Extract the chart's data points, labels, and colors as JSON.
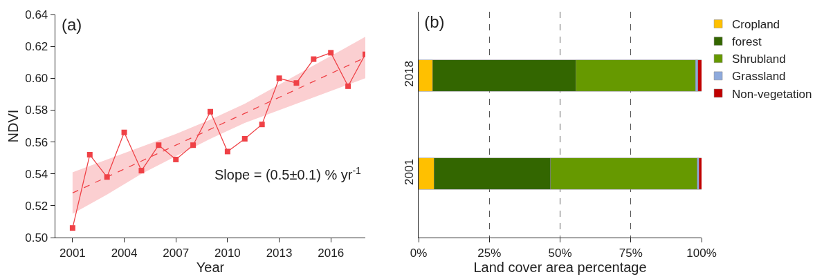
{
  "chart_data": [
    {
      "type": "line",
      "title": "(a)",
      "xlabel": "Year",
      "ylabel": "NDVI",
      "x": [
        2001,
        2002,
        2003,
        2004,
        2005,
        2006,
        2007,
        2008,
        2009,
        2010,
        2011,
        2012,
        2013,
        2014,
        2015,
        2016,
        2017,
        2018
      ],
      "series": [
        {
          "color": "#ef4146",
          "marker": "square",
          "line_style": "solid",
          "values": [
            0.506,
            0.552,
            0.538,
            0.566,
            0.542,
            0.558,
            0.549,
            0.558,
            0.579,
            0.554,
            0.562,
            0.571,
            0.6,
            0.597,
            0.612,
            0.616,
            0.595,
            0.615
          ]
        },
        {
          "color": "#ef4146",
          "marker": "none",
          "line_style": "dashed",
          "x": [
            2001,
            2003,
            2005,
            2007,
            2009,
            2011,
            2013,
            2015,
            2017,
            2018
          ],
          "values": [
            0.528,
            0.538,
            0.548,
            0.558,
            0.568,
            0.578,
            0.588,
            0.598,
            0.608,
            0.613
          ],
          "lower": [
            0.515,
            0.527,
            0.54,
            0.551,
            0.562,
            0.572,
            0.58,
            0.588,
            0.596,
            0.6
          ],
          "upper": [
            0.541,
            0.549,
            0.557,
            0.565,
            0.574,
            0.584,
            0.596,
            0.608,
            0.62,
            0.626
          ]
        }
      ],
      "xlim": [
        2000,
        2018
      ],
      "xticks": [
        2001,
        2004,
        2007,
        2010,
        2013,
        2016
      ],
      "ylim": [
        0.5,
        0.64
      ],
      "yticks": [
        {
          "value": 0.5,
          "label": "0.50"
        },
        {
          "value": 0.52,
          "label": "0.52"
        },
        {
          "value": 0.54,
          "label": "0.54"
        },
        {
          "value": 0.56,
          "label": "0.56"
        },
        {
          "value": 0.58,
          "label": "0.58"
        },
        {
          "value": 0.6,
          "label": "0.60"
        },
        {
          "value": 0.62,
          "label": "0.62"
        },
        {
          "value": 0.64,
          "label": "0.64"
        }
      ],
      "grid": false,
      "legend": false,
      "annotations": [
        "Slope = (0.5±0.1) % yr$^{-1}$"
      ]
    },
    {
      "type": "bar",
      "title": "(b)",
      "orientation": "horizontal",
      "stacked": true,
      "categories": [
        "2018",
        "2001"
      ],
      "xlabel": "Land cover area percentage",
      "series": [
        {
          "name": "Cropland",
          "color": "#ffc000",
          "values": [
            5.0,
            5.5
          ]
        },
        {
          "name": "forest",
          "color": "#336600",
          "values": [
            50.6,
            41.1
          ]
        },
        {
          "name": "Shrubland",
          "color": "#669900",
          "values": [
            42.3,
            51.9
          ]
        },
        {
          "name": "Grassland",
          "color": "#8eaadc",
          "values": [
            0.8,
            0.6
          ]
        },
        {
          "name": "Non-vegetation",
          "color": "#c00000",
          "values": [
            1.3,
            0.9
          ]
        }
      ],
      "xlim": [
        0,
        100
      ],
      "xticks": [
        {
          "value": 0,
          "label": "0%"
        },
        {
          "value": 25,
          "label": "25%"
        },
        {
          "value": 50,
          "label": "50%"
        },
        {
          "value": 75,
          "label": "75%"
        },
        {
          "value": 100,
          "label": "100%"
        }
      ],
      "grid": "x",
      "legend": "right"
    }
  ]
}
